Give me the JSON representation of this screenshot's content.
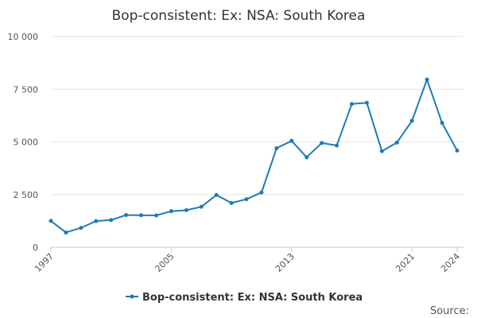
{
  "chart_data": {
    "type": "line",
    "title": "Bop-consistent: Ex: NSA: South Korea",
    "xlabel": "",
    "ylabel": "",
    "x": [
      1997,
      1998,
      1999,
      2000,
      2001,
      2002,
      2003,
      2004,
      2005,
      2006,
      2007,
      2008,
      2009,
      2010,
      2011,
      2012,
      2013,
      2014,
      2015,
      2016,
      2017,
      2018,
      2019,
      2020,
      2021,
      2022,
      2023,
      2024
    ],
    "series": [
      {
        "name": "Bop-consistent: Ex: NSA: South Korea",
        "color": "#1f7ab8",
        "values": [
          1250,
          700,
          920,
          1240,
          1290,
          1530,
          1520,
          1510,
          1710,
          1760,
          1920,
          2480,
          2100,
          2280,
          2600,
          4700,
          5050,
          4270,
          4950,
          4830,
          6800,
          6860,
          4560,
          4970,
          6000,
          7960,
          5900,
          4590
        ]
      }
    ],
    "ylim": [
      0,
      10000
    ],
    "yticks": [
      {
        "value": 0,
        "label": "0"
      },
      {
        "value": 2500,
        "label": "2 500"
      },
      {
        "value": 5000,
        "label": "5 000"
      },
      {
        "value": 7500,
        "label": "7 500"
      },
      {
        "value": 10000,
        "label": "10 000"
      }
    ],
    "xticks": [
      {
        "value": 1997,
        "label": "1997"
      },
      {
        "value": 2005,
        "label": "2005"
      },
      {
        "value": 2013,
        "label": "2013"
      },
      {
        "value": 2021,
        "label": "2021"
      },
      {
        "value": 2024,
        "label": "2024"
      }
    ],
    "grid": true,
    "legend_position": "bottom-center",
    "source_label": "Source:"
  }
}
